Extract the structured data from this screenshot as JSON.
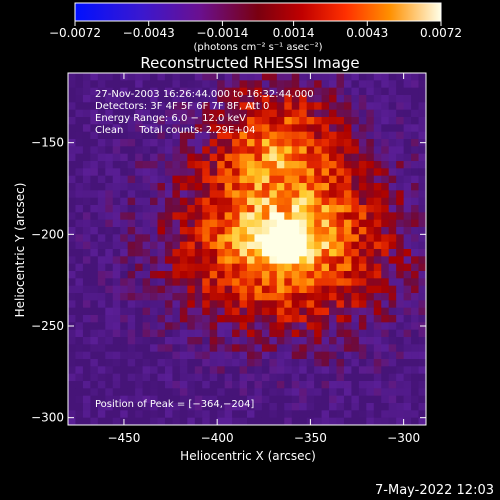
{
  "chart_data": {
    "type": "heatmap",
    "title": "Reconstructed RHESSI Image",
    "xlabel": "Heliocentric X (arcsec)",
    "ylabel": "Heliocentric Y (arcsec)",
    "xlim": [
      -480,
      -288
    ],
    "ylim": [
      -304,
      -112
    ],
    "x_ticks": [
      {
        "value": -450,
        "label": "−450"
      },
      {
        "value": -400,
        "label": "−400"
      },
      {
        "value": -350,
        "label": "−350"
      },
      {
        "value": -300,
        "label": "−300"
      }
    ],
    "y_ticks": [
      {
        "value": -150,
        "label": "−150"
      },
      {
        "value": -200,
        "label": "−200"
      },
      {
        "value": -250,
        "label": "−250"
      },
      {
        "value": -300,
        "label": "−300"
      }
    ],
    "colorbar": {
      "range": [
        -0.0072,
        0.0072
      ],
      "tick_values": [
        -0.0072,
        -0.0043,
        -0.0014,
        0.0014,
        0.0043,
        0.0072
      ],
      "tick_labels": [
        "−0.0072",
        "−0.0043",
        "−0.0014",
        "0.0014",
        "0.0043",
        "0.0072"
      ],
      "unit_label": "(photons cm⁻² s⁻¹ asec⁻²)",
      "colors": [
        "#0000ff",
        "#4b0082",
        "#800000",
        "#ff0000",
        "#ff8c00",
        "#ffffe0"
      ]
    },
    "annotations": [
      "27-Nov-2003 16:26:44.000 to 16:32:44.000",
      "Detectors: 3F 4F 5F 6F 7F 8F, Att 0",
      "Energy Range: 6.0 − 12.0 keV",
      "Clean     Total counts: 2.29E+04"
    ],
    "peak_label": "Position of Peak = [−364,−204]",
    "peak_position": [
      -364,
      -204
    ],
    "grid": false
  },
  "footer": {
    "timestamp": "7-May-2022 12:03"
  }
}
